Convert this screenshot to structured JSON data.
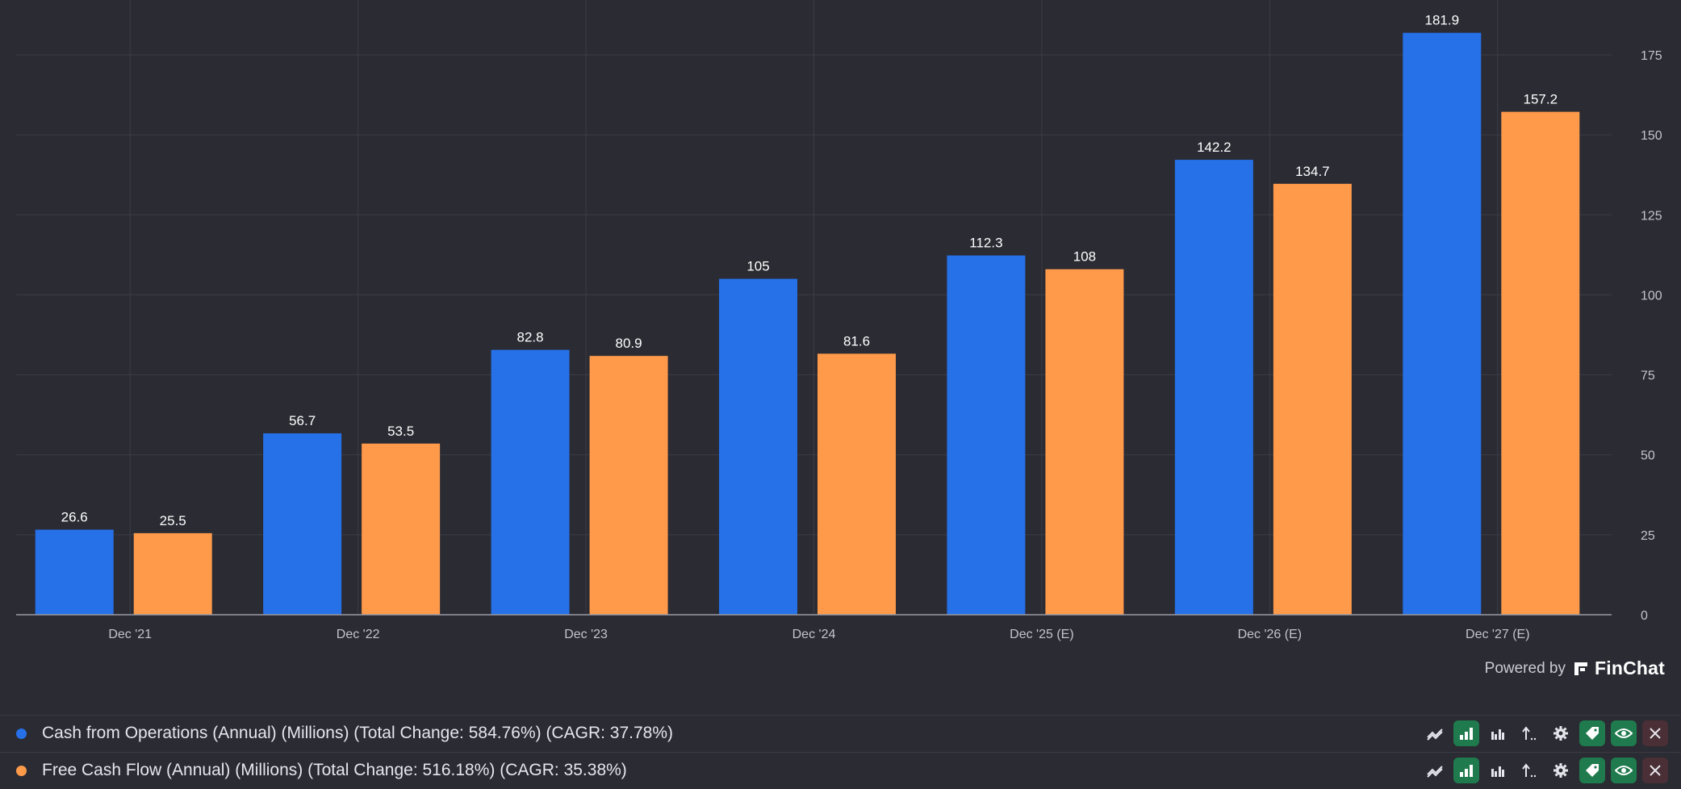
{
  "chart_data": {
    "type": "bar",
    "categories": [
      "Dec '21",
      "Dec '22",
      "Dec '23",
      "Dec '24",
      "Dec '25 (E)",
      "Dec '26 (E)",
      "Dec '27 (E)"
    ],
    "series": [
      {
        "name": "Cash from Operations (Annual) (Millions) (Total Change: 584.76%) (CAGR: 37.78%)",
        "color": "#2670e8",
        "values": [
          26.6,
          56.7,
          82.8,
          105,
          112.3,
          142.2,
          181.9
        ]
      },
      {
        "name": "Free Cash Flow (Annual) (Millions) (Total Change: 516.18%) (CAGR: 35.38%)",
        "color": "#ff9a4a",
        "values": [
          25.5,
          53.5,
          80.9,
          81.6,
          108,
          134.7,
          157.2
        ]
      }
    ],
    "value_labels": [
      [
        "26.6",
        "56.7",
        "82.8",
        "105",
        "112.3",
        "142.2",
        "181.9"
      ],
      [
        "25.5",
        "53.5",
        "80.9",
        "81.6",
        "108",
        "134.7",
        "157.2"
      ]
    ],
    "yticks": [
      0,
      25,
      50,
      75,
      100,
      125,
      150,
      175
    ],
    "ylim": [
      0,
      192
    ],
    "y_axis_side": "right",
    "grid": true,
    "title": "",
    "xlabel": "",
    "ylabel": ""
  },
  "powered_by": {
    "text": "Powered by",
    "brand": "FinChat"
  },
  "legend": [
    {
      "label": "Cash from Operations (Annual) (Millions) (Total Change: 584.76%) (CAGR: 37.78%)",
      "color": "#2670e8"
    },
    {
      "label": "Free Cash Flow (Annual) (Millions) (Total Change: 516.18%) (CAGR: 35.38%)",
      "color": "#ff9a4a"
    }
  ],
  "icons": [
    "trend-line-icon",
    "bar-chart-icon",
    "grouped-bar-icon",
    "sort-icon",
    "gear-icon",
    "tag-icon",
    "eye-icon",
    "close-icon"
  ]
}
